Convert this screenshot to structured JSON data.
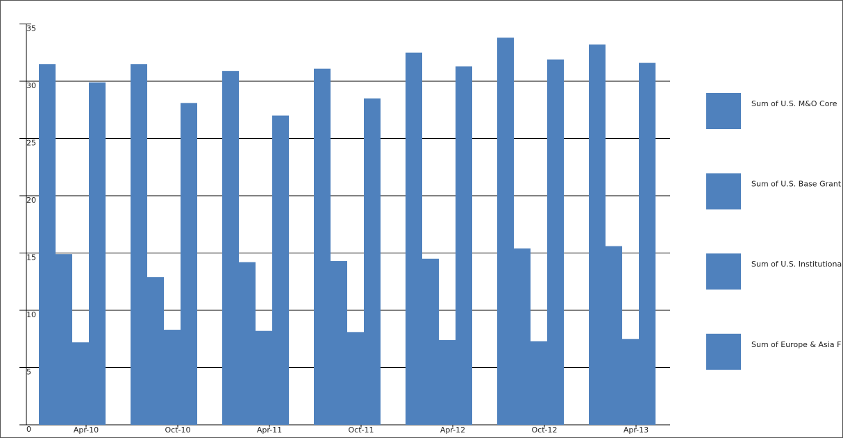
{
  "chart_data": {
    "type": "bar",
    "categories": [
      "Apr-10",
      "Oct-10",
      "Apr-11",
      "Oct-11",
      "Apr-12",
      "Oct-12",
      "Apr-13"
    ],
    "series": [
      {
        "name": "Sum of U.S. M&O Core",
        "color": "#4f81bd",
        "values": [
          31.5,
          31.5,
          30.9,
          31.1,
          32.5,
          33.8,
          33.2
        ]
      },
      {
        "name": "Sum of U.S. Base Grant",
        "color": "#4f81bd",
        "values": [
          14.9,
          12.9,
          14.2,
          14.3,
          14.5,
          15.4,
          15.6
        ]
      },
      {
        "name": "Sum of U.S. Institutiona",
        "color": "#4f81bd",
        "values": [
          7.2,
          8.3,
          8.2,
          8.1,
          7.4,
          7.3,
          7.5
        ]
      },
      {
        "name": "Sum of Europe & Asia F",
        "color": "#4f81bd",
        "values": [
          29.9,
          28.1,
          27.0,
          28.5,
          31.3,
          31.9,
          31.6
        ]
      }
    ],
    "ylim": [
      0,
      35
    ],
    "yticks": [
      0,
      5,
      10,
      15,
      20,
      25,
      30,
      35
    ],
    "grid": true
  }
}
